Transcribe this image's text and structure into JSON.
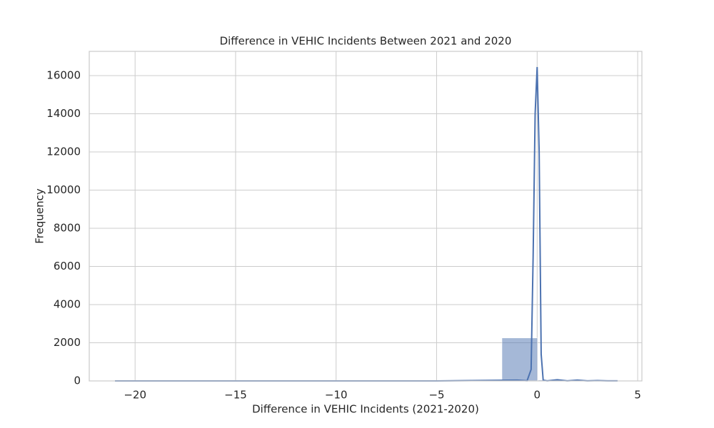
{
  "chart_data": {
    "type": "histogram",
    "title": "Difference in VEHIC Incidents Between 2021 and 2020",
    "xlabel": "Difference in VEHIC Incidents (2021-2020)",
    "ylabel": "Frequency",
    "bins": [
      -21,
      -19.25,
      -17.5,
      -15.75,
      -14,
      -12.25,
      -10.5,
      -8.75,
      -7,
      -5.25,
      -3.5,
      -1.75,
      0.05,
      2,
      4
    ],
    "values": [
      30,
      5,
      3,
      3,
      3,
      3,
      5,
      5,
      10,
      20,
      30,
      2250,
      45,
      30
    ],
    "color": "#4c72b0",
    "kde": {
      "color": "#4c72b0",
      "x": [
        -21,
        -10,
        -5,
        -1,
        -0.5,
        -0.3,
        -0.2,
        -0.1,
        0,
        0.1,
        0.2,
        0.3,
        0.5,
        1,
        1.5,
        2,
        2.5,
        3,
        3.5,
        4
      ],
      "values": [
        0,
        0,
        0,
        40,
        10,
        600,
        6500,
        14000,
        16450,
        12000,
        1400,
        40,
        5,
        60,
        5,
        40,
        5,
        20,
        3,
        5
      ]
    },
    "xlim": [
      -22.28,
      5.21
    ],
    "ylim": [
      0,
      17271
    ],
    "xticks": [
      {
        "value": -20,
        "label": "−20"
      },
      {
        "value": -15,
        "label": "−15"
      },
      {
        "value": -10,
        "label": "−10"
      },
      {
        "value": -5,
        "label": "−5"
      },
      0,
      5
    ],
    "yticks": [
      0,
      2000,
      4000,
      6000,
      8000,
      10000,
      12000,
      14000,
      16000
    ],
    "grid": true
  }
}
